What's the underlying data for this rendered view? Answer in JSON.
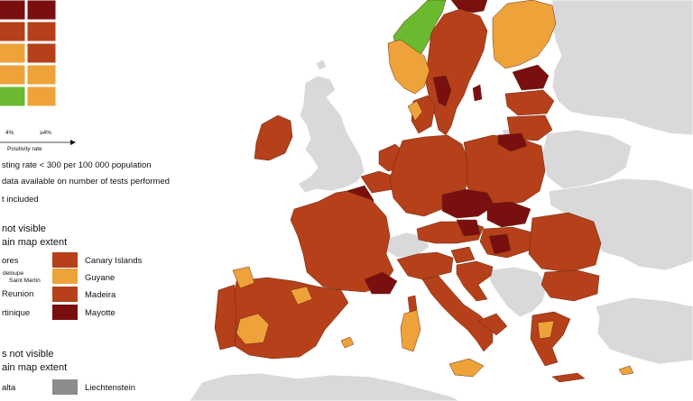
{
  "colors": {
    "sea": "#ffffff",
    "dark_red": "#7a0f0f",
    "red": "#b5401a",
    "orange": "#eea23a",
    "green": "#6ab92f",
    "grey": "#d9d9d9",
    "mid_grey": "#8c8c8c",
    "border": "#5a2a15"
  },
  "legend": {
    "matrix_colors": [
      [
        "dark_red",
        "dark_red"
      ],
      [
        "red",
        "red"
      ],
      [
        "orange",
        "red"
      ],
      [
        "orange",
        "orange"
      ],
      [
        "green",
        "orange"
      ]
    ],
    "col_labels": [
      "4%",
      "≥4%"
    ],
    "axis_label": "Positivity rate",
    "notes": [
      "sting rate < 300 per 100 000 population",
      "data available on number of tests performed",
      "t included"
    ],
    "section1_title_line1": "not visible",
    "section1_title_line2": "ain map extent",
    "regions_left": [
      {
        "label": "ores",
        "small": false
      },
      {
        "label": "deloupe",
        "label2": "Saint Martin",
        "small": true
      },
      {
        "label": "Reunion",
        "small": false
      },
      {
        "label": "rtinique",
        "small": false
      }
    ],
    "regions_right": [
      {
        "label": "Canary Islands",
        "color": "red"
      },
      {
        "label": "Guyane",
        "color": "orange"
      },
      {
        "label": "Madeira",
        "color": "red"
      },
      {
        "label": "Mayotte",
        "color": "dark_red"
      }
    ],
    "section2_title_line1": "s not visible",
    "section2_title_line2": "ain map extent",
    "section2_left": "alta",
    "section2_right": "Liechtenstein"
  }
}
